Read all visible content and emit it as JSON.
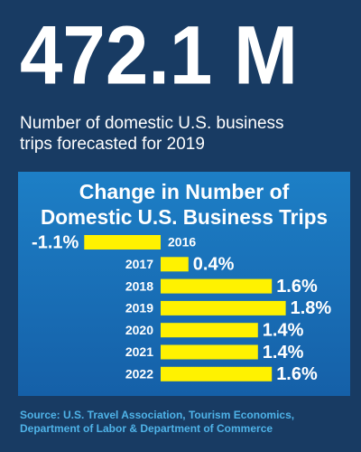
{
  "headline": "472.1 M",
  "subtitle": [
    "Number of domestic U.S. business",
    "trips forecasted for 2019"
  ],
  "source": [
    "Source: U.S. Travel Association, Tourism Economics,",
    "Department of Labor & Department of Commerce"
  ],
  "chart_data": {
    "type": "bar",
    "orientation": "horizontal",
    "title": [
      "Change in Number of",
      "Domestic U.S. Business Trips"
    ],
    "categories": [
      "2016",
      "2017",
      "2018",
      "2019",
      "2020",
      "2021",
      "2022"
    ],
    "values": [
      -1.1,
      0.4,
      1.6,
      1.8,
      1.4,
      1.4,
      1.6
    ],
    "value_labels": [
      "-1.1%",
      "0.4%",
      "1.6%",
      "1.8%",
      "1.4%",
      "1.4%",
      "1.6%"
    ],
    "color": "#fff200"
  }
}
